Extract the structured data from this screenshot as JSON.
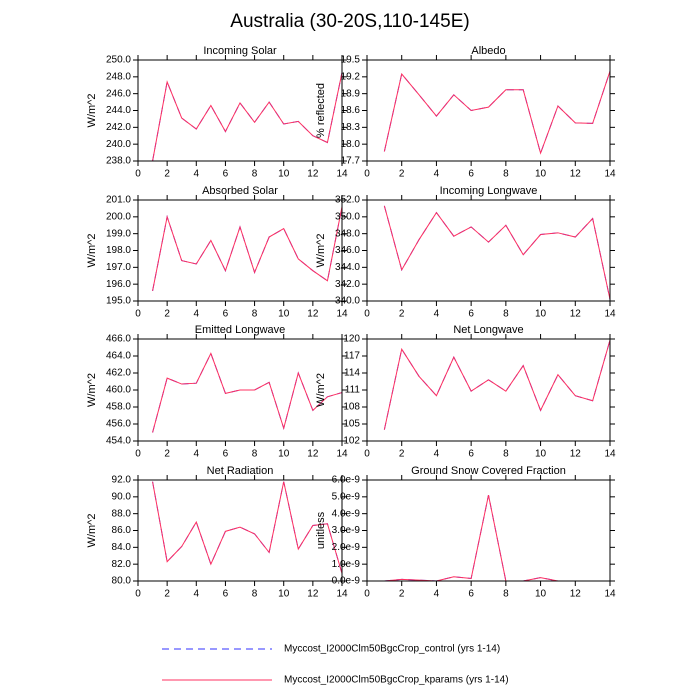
{
  "title": "Australia (30-20S,110-145E)",
  "chart_data": [
    {
      "type": "line",
      "title": "Incoming Solar",
      "ylabel": "W/m^2",
      "x": [
        1,
        2,
        3,
        4,
        5,
        6,
        7,
        8,
        9,
        10,
        11,
        12,
        13,
        14
      ],
      "xlim": [
        0,
        14
      ],
      "xticks": [
        0,
        2,
        4,
        6,
        8,
        10,
        12,
        14
      ],
      "ylim": [
        238,
        250
      ],
      "yticks": [
        {
          "value": 238,
          "label": "238.0"
        },
        {
          "value": 240,
          "label": "240.0"
        },
        {
          "value": 242,
          "label": "242.0"
        },
        {
          "value": 244,
          "label": "244.0"
        },
        {
          "value": 246,
          "label": "246.0"
        },
        {
          "value": 248,
          "label": "248.0"
        },
        {
          "value": 250,
          "label": "250.0"
        }
      ],
      "series": [
        {
          "name": "Myccost_I2000Clm50BgcCrop_control (yrs 1-14)",
          "color": "#3030ff",
          "dash": true,
          "values": [
            238.0,
            247.4,
            243.1,
            241.8,
            244.6,
            241.5,
            244.9,
            242.6,
            245.0,
            242.4,
            242.7,
            241.0,
            240.2,
            248.5
          ]
        },
        {
          "name": "Myccost_I2000Clm50BgcCrop_kparams (yrs 1-14)",
          "color": "#ff3060",
          "dash": false,
          "values": [
            238.0,
            247.4,
            243.1,
            241.8,
            244.6,
            241.5,
            244.9,
            242.6,
            245.0,
            242.4,
            242.7,
            241.0,
            240.2,
            248.5
          ]
        }
      ]
    },
    {
      "type": "line",
      "title": "Albedo",
      "ylabel": "% reflected",
      "x": [
        1,
        2,
        3,
        4,
        5,
        6,
        7,
        8,
        9,
        10,
        11,
        12,
        13,
        14
      ],
      "xlim": [
        0,
        14
      ],
      "xticks": [
        0,
        2,
        4,
        6,
        8,
        10,
        12,
        14
      ],
      "ylim": [
        17.7,
        19.5
      ],
      "yticks": [
        17.7,
        {
          "value": 18,
          "label": "18.0"
        },
        18.3,
        18.6,
        18.9,
        19.2,
        19.5
      ],
      "series": [
        {
          "name": "Myccost_I2000Clm50BgcCrop_control (yrs 1-14)",
          "color": "#3030ff",
          "dash": true,
          "values": [
            17.87,
            19.25,
            18.88,
            18.5,
            18.88,
            18.6,
            18.66,
            18.97,
            18.97,
            17.84,
            18.68,
            18.38,
            18.37,
            19.3
          ]
        },
        {
          "name": "Myccost_I2000Clm50BgcCrop_kparams (yrs 1-14)",
          "color": "#ff3060",
          "dash": false,
          "values": [
            17.87,
            19.25,
            18.88,
            18.5,
            18.88,
            18.6,
            18.66,
            18.97,
            18.97,
            17.84,
            18.68,
            18.38,
            18.37,
            19.3
          ]
        }
      ]
    },
    {
      "type": "line",
      "title": "Absorbed Solar",
      "ylabel": "W/m^2",
      "x": [
        1,
        2,
        3,
        4,
        5,
        6,
        7,
        8,
        9,
        10,
        11,
        12,
        13,
        14
      ],
      "xlim": [
        0,
        14
      ],
      "xticks": [
        0,
        2,
        4,
        6,
        8,
        10,
        12,
        14
      ],
      "ylim": [
        195,
        201
      ],
      "yticks": [
        {
          "value": 195,
          "label": "195.0"
        },
        {
          "value": 196,
          "label": "196.0"
        },
        {
          "value": 197,
          "label": "197.0"
        },
        {
          "value": 198,
          "label": "198.0"
        },
        {
          "value": 199,
          "label": "199.0"
        },
        {
          "value": 200,
          "label": "200.0"
        },
        {
          "value": 201,
          "label": "201.0"
        }
      ],
      "series": [
        {
          "name": "Myccost_I2000Clm50BgcCrop_control (yrs 1-14)",
          "color": "#3030ff",
          "dash": true,
          "values": [
            195.6,
            200.0,
            197.4,
            197.2,
            198.6,
            196.8,
            199.4,
            196.7,
            198.8,
            199.3,
            197.5,
            196.8,
            196.2,
            200.6
          ]
        },
        {
          "name": "Myccost_I2000Clm50BgcCrop_kparams (yrs 1-14)",
          "color": "#ff3060",
          "dash": false,
          "values": [
            195.6,
            200.0,
            197.4,
            197.2,
            198.6,
            196.8,
            199.4,
            196.7,
            198.8,
            199.3,
            197.5,
            196.8,
            196.2,
            200.6
          ]
        }
      ]
    },
    {
      "type": "line",
      "title": "Incoming Longwave",
      "ylabel": "W/m^2",
      "x": [
        1,
        2,
        3,
        4,
        5,
        6,
        7,
        8,
        9,
        10,
        11,
        12,
        13,
        14
      ],
      "xlim": [
        0,
        14
      ],
      "xticks": [
        0,
        2,
        4,
        6,
        8,
        10,
        12,
        14
      ],
      "ylim": [
        340,
        352
      ],
      "yticks": [
        {
          "value": 340,
          "label": "340.0"
        },
        {
          "value": 342,
          "label": "342.0"
        },
        {
          "value": 344,
          "label": "344.0"
        },
        {
          "value": 346,
          "label": "346.0"
        },
        {
          "value": 348,
          "label": "348.0"
        },
        {
          "value": 350,
          "label": "350.0"
        },
        {
          "value": 352,
          "label": "352.0"
        }
      ],
      "series": [
        {
          "name": "Myccost_I2000Clm50BgcCrop_control (yrs 1-14)",
          "color": "#3030ff",
          "dash": true,
          "values": [
            351.3,
            343.7,
            347.3,
            350.5,
            347.7,
            348.8,
            347.0,
            349.0,
            345.5,
            347.9,
            348.1,
            347.6,
            349.8,
            340.2
          ]
        },
        {
          "name": "Myccost_I2000Clm50BgcCrop_kparams (yrs 1-14)",
          "color": "#ff3060",
          "dash": false,
          "values": [
            351.3,
            343.7,
            347.3,
            350.5,
            347.7,
            348.8,
            347.0,
            349.0,
            345.5,
            347.9,
            348.1,
            347.6,
            349.8,
            340.2
          ]
        }
      ]
    },
    {
      "type": "line",
      "title": "Emitted Longwave",
      "ylabel": "W/m^2",
      "x": [
        1,
        2,
        3,
        4,
        5,
        6,
        7,
        8,
        9,
        10,
        11,
        12,
        13,
        14
      ],
      "xlim": [
        0,
        14
      ],
      "xticks": [
        0,
        2,
        4,
        6,
        8,
        10,
        12,
        14
      ],
      "ylim": [
        454,
        466
      ],
      "yticks": [
        {
          "value": 454,
          "label": "454.0"
        },
        {
          "value": 456,
          "label": "456.0"
        },
        {
          "value": 458,
          "label": "458.0"
        },
        {
          "value": 460,
          "label": "460.0"
        },
        {
          "value": 462,
          "label": "462.0"
        },
        {
          "value": 464,
          "label": "464.0"
        },
        {
          "value": 466,
          "label": "466.0"
        }
      ],
      "series": [
        {
          "name": "Myccost_I2000Clm50BgcCrop_control (yrs 1-14)",
          "color": "#3030ff",
          "dash": true,
          "values": [
            455.0,
            461.4,
            460.7,
            460.8,
            464.3,
            459.6,
            460.0,
            460.0,
            460.9,
            455.5,
            462.0,
            457.6,
            459.2,
            459.7
          ]
        },
        {
          "name": "Myccost_I2000Clm50BgcCrop_kparams (yrs 1-14)",
          "color": "#ff3060",
          "dash": false,
          "values": [
            455.0,
            461.4,
            460.7,
            460.8,
            464.3,
            459.6,
            460.0,
            460.0,
            460.9,
            455.5,
            462.0,
            457.6,
            459.2,
            459.7
          ]
        }
      ]
    },
    {
      "type": "line",
      "title": "Net Longwave",
      "ylabel": "W/m^2",
      "x": [
        1,
        2,
        3,
        4,
        5,
        6,
        7,
        8,
        9,
        10,
        11,
        12,
        13,
        14
      ],
      "xlim": [
        0,
        14
      ],
      "xticks": [
        0,
        2,
        4,
        6,
        8,
        10,
        12,
        14
      ],
      "ylim": [
        102,
        120
      ],
      "yticks": [
        102,
        105,
        108,
        111,
        114,
        117,
        120
      ],
      "series": [
        {
          "name": "Myccost_I2000Clm50BgcCrop_control (yrs 1-14)",
          "color": "#3030ff",
          "dash": true,
          "values": [
            104.0,
            118.2,
            113.4,
            110.0,
            116.8,
            110.8,
            112.8,
            110.8,
            115.3,
            107.4,
            113.7,
            110.0,
            109.1,
            119.8
          ]
        },
        {
          "name": "Myccost_I2000Clm50BgcCrop_kparams (yrs 1-14)",
          "color": "#ff3060",
          "dash": false,
          "values": [
            104.0,
            118.2,
            113.4,
            110.0,
            116.8,
            110.8,
            112.8,
            110.8,
            115.3,
            107.4,
            113.7,
            110.0,
            109.1,
            119.8
          ]
        }
      ]
    },
    {
      "type": "line",
      "title": "Net Radiation",
      "ylabel": "W/m^2",
      "x": [
        1,
        2,
        3,
        4,
        5,
        6,
        7,
        8,
        9,
        10,
        11,
        12,
        13,
        14
      ],
      "xlim": [
        0,
        14
      ],
      "xticks": [
        0,
        2,
        4,
        6,
        8,
        10,
        12,
        14
      ],
      "ylim": [
        80,
        92
      ],
      "yticks": [
        {
          "value": 80,
          "label": "80.0"
        },
        {
          "value": 82,
          "label": "82.0"
        },
        {
          "value": 84,
          "label": "84.0"
        },
        {
          "value": 86,
          "label": "86.0"
        },
        {
          "value": 88,
          "label": "88.0"
        },
        {
          "value": 90,
          "label": "90.0"
        },
        {
          "value": 92,
          "label": "92.0"
        }
      ],
      "series": [
        {
          "name": "Myccost_I2000Clm50BgcCrop_control (yrs 1-14)",
          "color": "#3030ff",
          "dash": true,
          "values": [
            91.8,
            82.3,
            84.1,
            87.0,
            82.0,
            85.9,
            86.4,
            85.6,
            83.4,
            91.8,
            83.8,
            86.6,
            86.8,
            80.9
          ]
        },
        {
          "name": "Myccost_I2000Clm50BgcCrop_kparams (yrs 1-14)",
          "color": "#ff3060",
          "dash": false,
          "values": [
            91.8,
            82.3,
            84.1,
            87.0,
            82.0,
            85.9,
            86.4,
            85.6,
            83.4,
            91.8,
            83.8,
            86.6,
            86.8,
            80.9
          ]
        }
      ]
    },
    {
      "type": "line",
      "title": "Ground Snow Covered Fraction",
      "ylabel": "unitless",
      "x": [
        1,
        2,
        3,
        4,
        5,
        6,
        7,
        8,
        9,
        10,
        11,
        12,
        13,
        14
      ],
      "xlim": [
        0,
        14
      ],
      "xticks": [
        0,
        2,
        4,
        6,
        8,
        10,
        12,
        14
      ],
      "ylim": [
        0,
        6e-09
      ],
      "yticks": [
        {
          "value": 0,
          "label": "0.0e-9"
        },
        {
          "value": 1e-09,
          "label": "1.0e-9"
        },
        {
          "value": 2e-09,
          "label": "2.0e-9"
        },
        {
          "value": 3e-09,
          "label": "3.0e-9"
        },
        {
          "value": 4e-09,
          "label": "4.0e-9"
        },
        {
          "value": 5e-09,
          "label": "5.0e-9"
        },
        {
          "value": 6e-09,
          "label": "6.0e-9"
        }
      ],
      "series": [
        {
          "name": "Myccost_I2000Clm50BgcCrop_control (yrs 1-14)",
          "color": "#3030ff",
          "dash": true,
          "values": [
            0,
            1e-10,
            5e-11,
            0,
            2.5e-10,
            1.5e-10,
            5.1e-09,
            0,
            0,
            2e-10,
            0,
            0,
            0,
            0
          ]
        },
        {
          "name": "Myccost_I2000Clm50BgcCrop_kparams (yrs 1-14)",
          "color": "#ff3060",
          "dash": false,
          "values": [
            0,
            1e-10,
            5e-11,
            0,
            2.5e-10,
            1.5e-10,
            5.1e-09,
            0,
            0,
            2e-10,
            0,
            0,
            0,
            0
          ]
        }
      ]
    }
  ]
}
